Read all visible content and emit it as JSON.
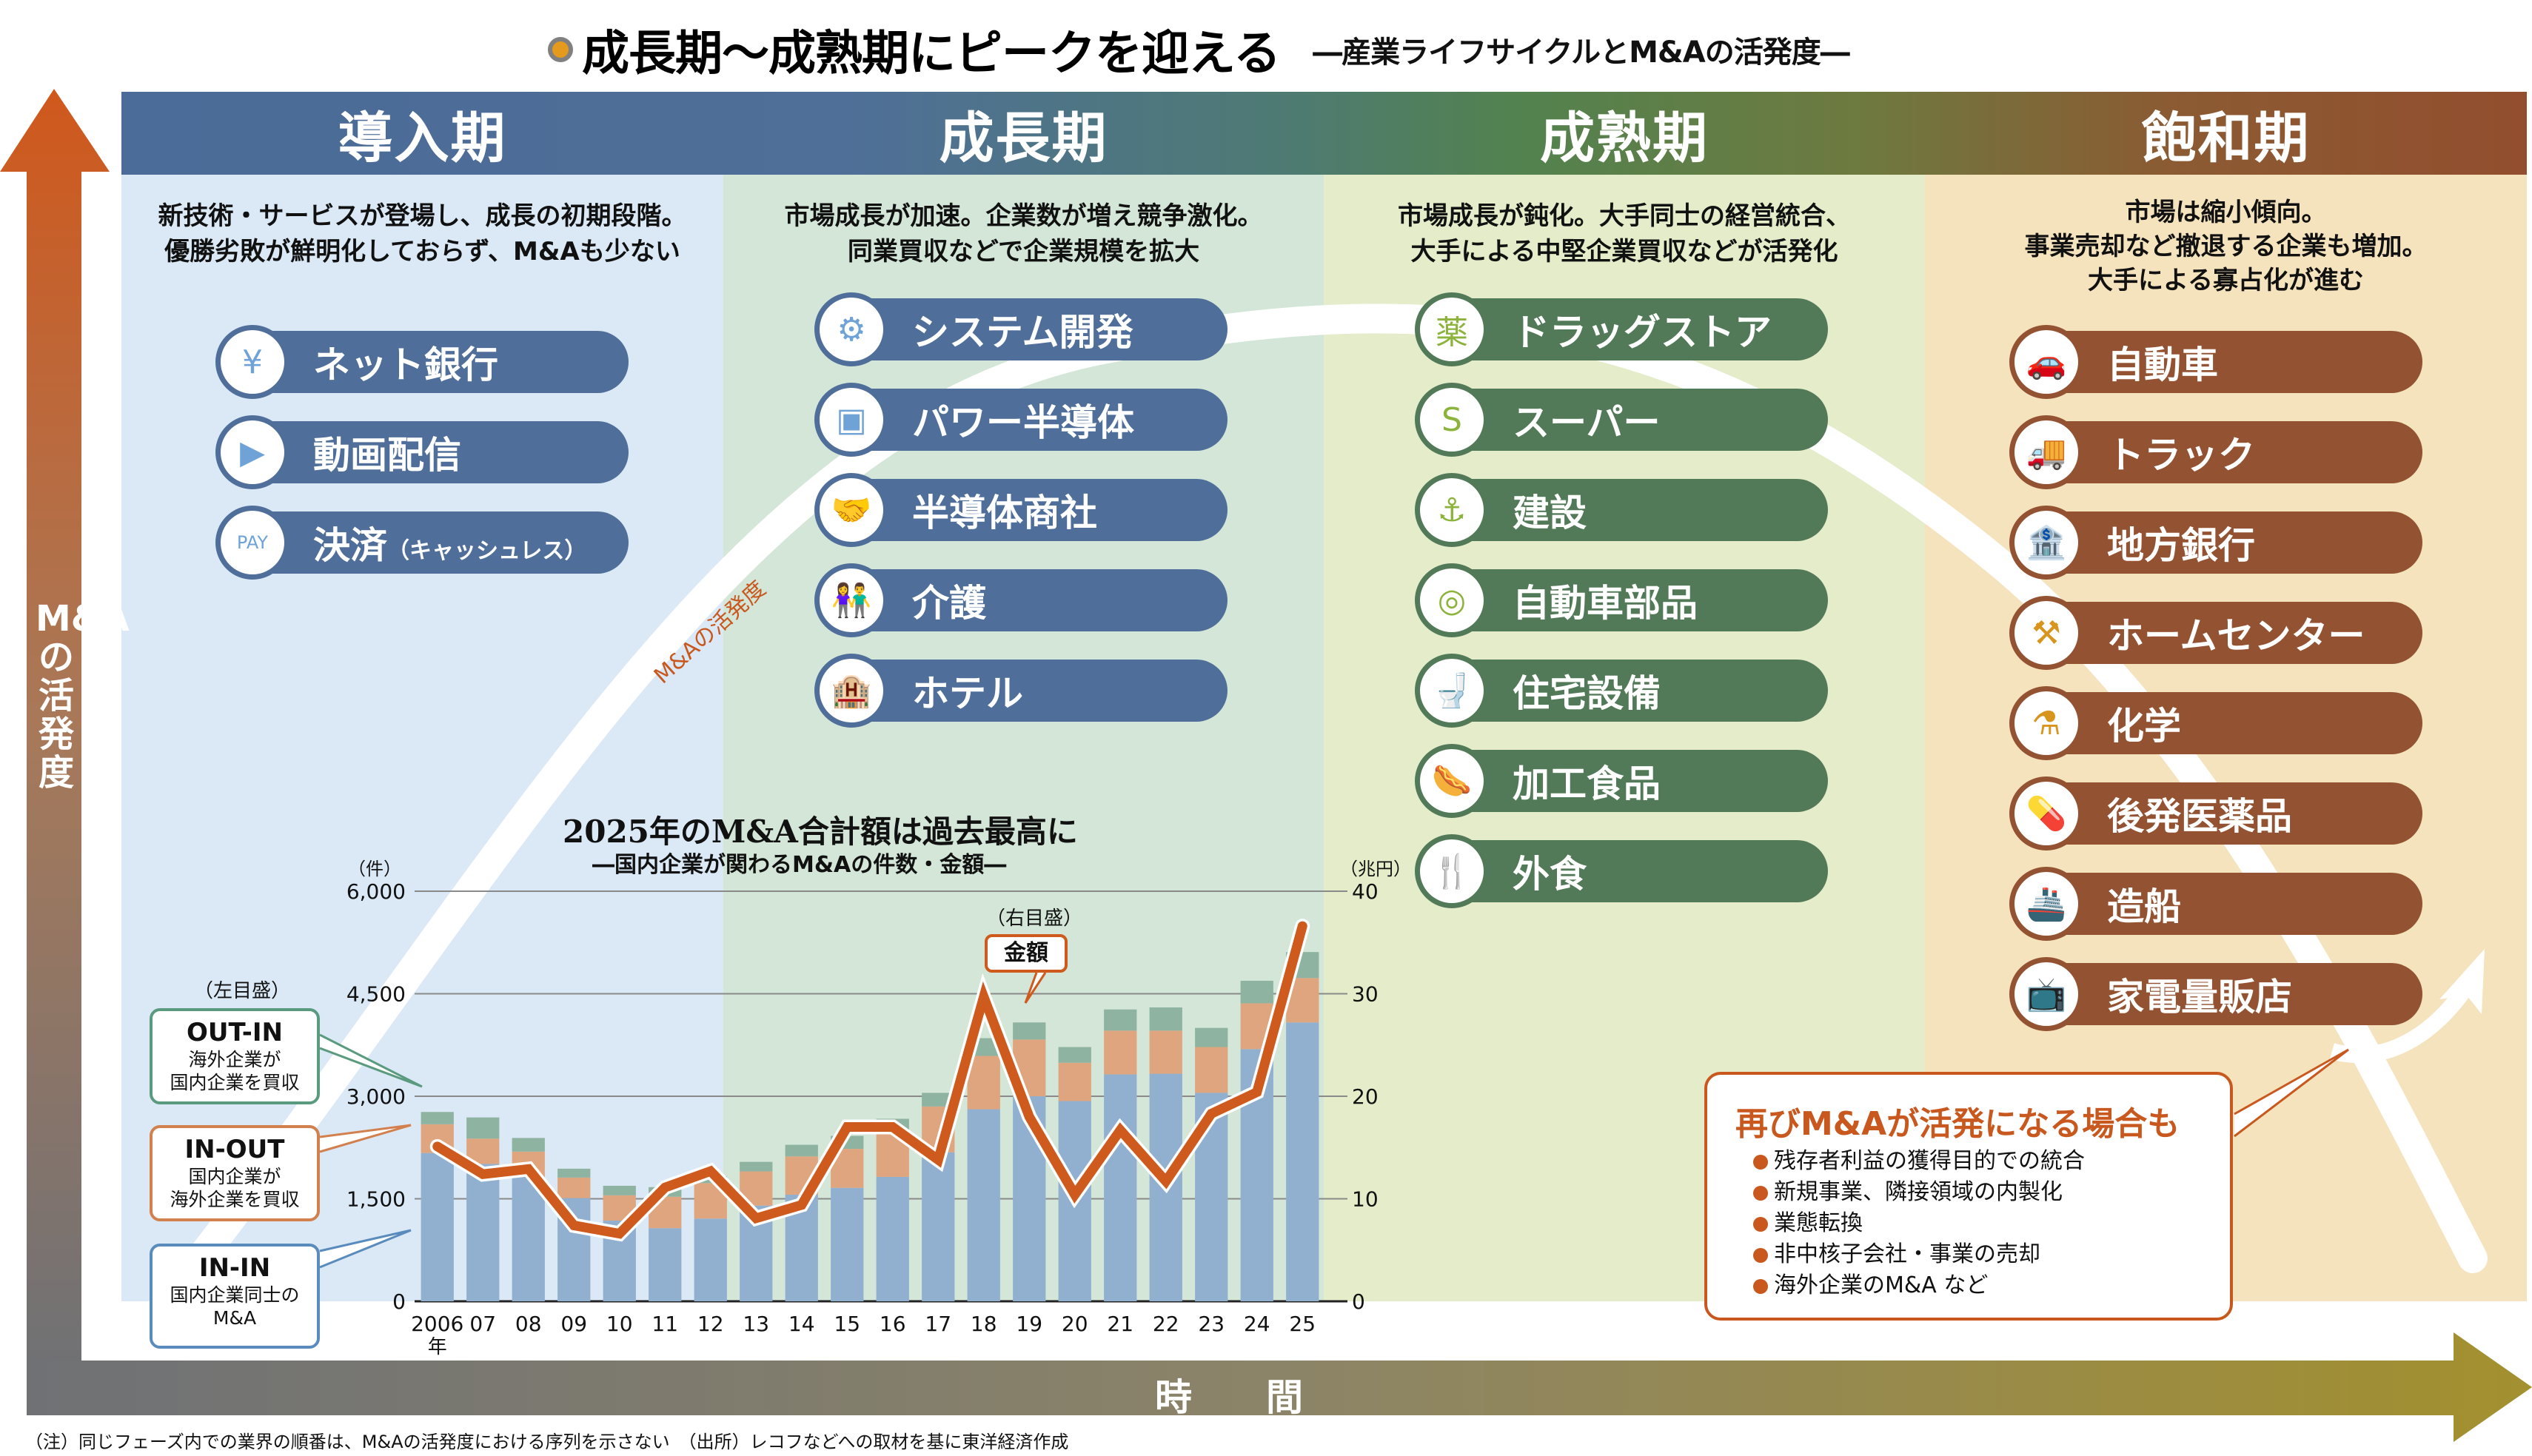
{
  "title": {
    "main": "成長期～成熟期にピークを迎える",
    "sub": "―産業ライフサイクルとM&Aの活発度―"
  },
  "axes": {
    "vertical_label": "M&Aの活発度",
    "horizontal_label": "時間",
    "curve_label": "M&Aの活発度"
  },
  "colors": {
    "intro": "#4f6e9a",
    "growth": "#4f6e9a",
    "mature": "#527a58",
    "decline": "#935231",
    "accent": "#c9581e"
  },
  "phases": [
    {
      "name": "導入期",
      "description": [
        "新技術・サービスが登場し、成長の初期段階。",
        "優勝劣敗が鮮明化しておらず、M&Aも少ない"
      ],
      "industries": [
        {
          "label": "ネット銀行",
          "icon": "smartphone-yen-icon",
          "glyph": "¥"
        },
        {
          "label": "動画配信",
          "icon": "video-play-icon",
          "glyph": "▶"
        },
        {
          "label": "決済",
          "suffix": "（キャッシュレス）",
          "icon": "pay-phone-icon",
          "glyph": "PAY"
        }
      ]
    },
    {
      "name": "成長期",
      "description": [
        "市場成長が加速。企業数が増え競争激化。",
        "同業買収などで企業規模を拡大"
      ],
      "industries": [
        {
          "label": "システム開発",
          "icon": "computer-developer-icon",
          "glyph": "⚙"
        },
        {
          "label": "パワー半導体",
          "icon": "chip-icon",
          "glyph": "▣"
        },
        {
          "label": "半導体商社",
          "icon": "handshake-building-icon",
          "glyph": "🤝"
        },
        {
          "label": "介護",
          "icon": "elderly-couple-icon",
          "glyph": "👫"
        },
        {
          "label": "ホテル",
          "icon": "hotel-building-icon",
          "glyph": "🏨"
        }
      ]
    },
    {
      "name": "成熟期",
      "description": [
        "市場成長が鈍化。大手同士の経営統合、",
        "大手による中堅企業買収などが活発化"
      ],
      "industries": [
        {
          "label": "ドラッグストア",
          "icon": "drugstore-icon",
          "glyph": "薬"
        },
        {
          "label": "スーパー",
          "icon": "supermarket-icon",
          "glyph": "S"
        },
        {
          "label": "建設",
          "icon": "crane-hook-icon",
          "glyph": "⚓"
        },
        {
          "label": "自動車部品",
          "icon": "tire-icon",
          "glyph": "◎"
        },
        {
          "label": "住宅設備",
          "icon": "toilet-icon",
          "glyph": "🚽"
        },
        {
          "label": "加工食品",
          "icon": "sausage-icon",
          "glyph": "🌭"
        },
        {
          "label": "外食",
          "icon": "fork-knife-icon",
          "glyph": "🍴"
        }
      ]
    },
    {
      "name": "飽和期",
      "description": [
        "市場は縮小傾向。",
        "事業売却など撤退する企業も増加。",
        "大手による寡占化が進む"
      ],
      "industries": [
        {
          "label": "自動車",
          "icon": "car-icon",
          "glyph": "🚗"
        },
        {
          "label": "トラック",
          "icon": "truck-icon",
          "glyph": "🚚"
        },
        {
          "label": "地方銀行",
          "icon": "bank-icon",
          "glyph": "🏦"
        },
        {
          "label": "ホームセンター",
          "icon": "home-tools-icon",
          "glyph": "⚒"
        },
        {
          "label": "化学",
          "icon": "flask-icon",
          "glyph": "⚗"
        },
        {
          "label": "後発医薬品",
          "icon": "capsule-icon",
          "glyph": "💊"
        },
        {
          "label": "造船",
          "icon": "ship-icon",
          "glyph": "🚢"
        },
        {
          "label": "家電量販店",
          "icon": "tv-monitor-icon",
          "glyph": "📺"
        }
      ]
    }
  ],
  "revival": {
    "title": "再びM&Aが活発になる場合も",
    "items": [
      "残存者利益の獲得目的での統合",
      "新規事業、隣接領域の内製化",
      "業態転換",
      "非中核子会社・事業の売却",
      "海外企業のM&A など"
    ]
  },
  "legend_callouts": {
    "left_scale": "（左目盛）",
    "right_scale": "（右目盛）",
    "out_in": {
      "title": "OUT-IN",
      "desc": [
        "海外企業が",
        "国内企業を買収"
      ]
    },
    "in_out": {
      "title": "IN-OUT",
      "desc": [
        "国内企業が",
        "海外企業を買収"
      ]
    },
    "in_in": {
      "title": "IN-IN",
      "desc": [
        "国内企業同士の",
        "M&A"
      ]
    },
    "amount": "金額"
  },
  "chart_data": {
    "type": "bar",
    "stacked": true,
    "title": "2025年のM&A合計額は過去最高に",
    "subtitle": "―国内企業が関わるM&Aの件数・金額―",
    "categories": [
      "2006",
      "07",
      "08",
      "09",
      "10",
      "11",
      "12",
      "13",
      "14",
      "15",
      "16",
      "17",
      "18",
      "19",
      "20",
      "21",
      "22",
      "23",
      "24",
      "25"
    ],
    "x_first_suffix": "年",
    "ylabel_left": "（件）",
    "ylabel_right": "（兆円）",
    "ylim_left": [
      0,
      6000
    ],
    "ylim_right": [
      0,
      40
    ],
    "yticks_left": [
      "0",
      "1,500",
      "3,000",
      "4,500",
      "6,000"
    ],
    "yticks_right": [
      "0",
      "10",
      "20",
      "30",
      "40"
    ],
    "grid": true,
    "series": [
      {
        "name": "IN-IN",
        "axis": "left",
        "color": "#91b0d0",
        "values": [
          2170,
          2010,
          1820,
          1510,
          1180,
          1070,
          1210,
          1400,
          1560,
          1660,
          1820,
          2180,
          2810,
          3000,
          2930,
          3320,
          3330,
          3050,
          3690,
          4080
        ]
      },
      {
        "name": "IN-OUT",
        "axis": "left",
        "color": "#dfa57e",
        "values": [
          420,
          370,
          370,
          300,
          370,
          460,
          520,
          500,
          560,
          570,
          650,
          670,
          780,
          830,
          560,
          640,
          630,
          670,
          670,
          650
        ]
      },
      {
        "name": "OUT-IN",
        "axis": "left",
        "color": "#8fb3a1",
        "values": [
          180,
          310,
          200,
          130,
          140,
          140,
          100,
          140,
          170,
          190,
          200,
          200,
          260,
          250,
          230,
          310,
          340,
          280,
          330,
          380
        ]
      },
      {
        "name": "金額",
        "axis": "right",
        "type": "line",
        "color": "#cf5a1d",
        "values": [
          15.1,
          12.4,
          12.9,
          7.4,
          6.6,
          11.1,
          12.7,
          8.1,
          9.4,
          17.0,
          17.0,
          13.8,
          29.7,
          18.0,
          10.4,
          16.7,
          11.7,
          18.3,
          20.4,
          36.6
        ]
      }
    ]
  },
  "footnote": "（注）同じフェーズ内での業界の順番は、M&Aの活発度における序列を示さない　（出所）レコフなどへの取材を基に東洋経済作成"
}
